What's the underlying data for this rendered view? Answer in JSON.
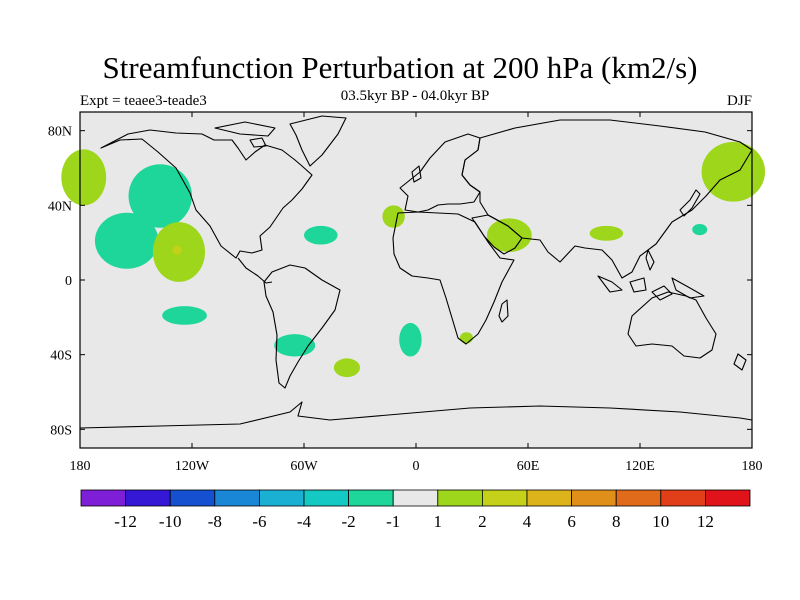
{
  "title": "Streamfunction Perturbation at 200 hPa (km2/s)",
  "experiment_label": "Expt = teaee3-teade3",
  "period_label": "03.5kyr BP - 04.0kyr BP",
  "season_label": "DJF",
  "chart_data": {
    "type": "heatmap",
    "projection": "cylindrical-equidistant",
    "lon_range": [
      -180,
      180
    ],
    "lat_range": [
      -90,
      90
    ],
    "x_ticks": [
      {
        "value": -180,
        "label": "180"
      },
      {
        "value": -120,
        "label": "120W"
      },
      {
        "value": -60,
        "label": "60W"
      },
      {
        "value": 0,
        "label": "0"
      },
      {
        "value": 60,
        "label": "60E"
      },
      {
        "value": 120,
        "label": "120E"
      },
      {
        "value": 180,
        "label": "180"
      }
    ],
    "y_ticks": [
      {
        "value": 80,
        "label": "80N"
      },
      {
        "value": 40,
        "label": "40N"
      },
      {
        "value": 0,
        "label": "0"
      },
      {
        "value": -40,
        "label": "40S"
      },
      {
        "value": -80,
        "label": "80S"
      }
    ],
    "background_color": "#e8e8e8",
    "colorbar": {
      "colors": [
        "#7e1ed6",
        "#3518d6",
        "#1550d1",
        "#1a86d6",
        "#1ab0d4",
        "#14c9c4",
        "#1ed69a",
        "#e8e8e8",
        "#9dd61a",
        "#c4d01a",
        "#dcb31a",
        "#e0901a",
        "#e06b1a",
        "#e03f1a",
        "#e0121a"
      ],
      "labels": [
        "-12",
        "-10",
        "-8",
        "-6",
        "-4",
        "-2",
        "-1",
        "1",
        "2",
        "4",
        "6",
        "8",
        "10",
        "12"
      ]
    },
    "regions": [
      {
        "name": "arctic-pacific-positive",
        "sign": "positive",
        "color": "#9dd61a",
        "lon_center": -178,
        "lat_center": 55,
        "lon_radius": 12,
        "lat_radius": 15
      },
      {
        "name": "north-pacific-negative",
        "sign": "negative",
        "color": "#1ed69a",
        "lon_center": -137,
        "lat_center": 45,
        "lon_radius": 17,
        "lat_radius": 17
      },
      {
        "name": "subtropical-pacific-negative",
        "sign": "negative",
        "color": "#1ed69a",
        "lon_center": -155,
        "lat_center": 21,
        "lon_radius": 17,
        "lat_radius": 15
      },
      {
        "name": "east-pacific-positive",
        "sign": "positive",
        "color": "#9dd61a",
        "lon_center": -127,
        "lat_center": 15,
        "lon_radius": 14,
        "lat_radius": 16
      },
      {
        "name": "east-pacific-core-positive",
        "sign": "positive",
        "color": "#c4d01a",
        "lon_center": -128,
        "lat_center": 16,
        "lon_radius": 2.5,
        "lat_radius": 2.5
      },
      {
        "name": "south-pacific-negative",
        "sign": "negative",
        "color": "#1ed69a",
        "lon_center": -124,
        "lat_center": -19,
        "lon_radius": 12,
        "lat_radius": 5
      },
      {
        "name": "caribbean-negative",
        "sign": "negative",
        "color": "#1ed69a",
        "lon_center": -51,
        "lat_center": 24,
        "lon_radius": 9,
        "lat_radius": 5
      },
      {
        "name": "south-america-negative",
        "sign": "negative",
        "color": "#1ed69a",
        "lon_center": -65,
        "lat_center": -35,
        "lon_radius": 11,
        "lat_radius": 6
      },
      {
        "name": "south-atlantic-positive",
        "sign": "positive",
        "color": "#9dd61a",
        "lon_center": -37,
        "lat_center": -47,
        "lon_radius": 7,
        "lat_radius": 5
      },
      {
        "name": "central-atlantic-negative",
        "sign": "negative",
        "color": "#1ed69a",
        "lon_center": -3,
        "lat_center": -32,
        "lon_radius": 6,
        "lat_radius": 9
      },
      {
        "name": "mediterranean-positive",
        "sign": "positive",
        "color": "#9dd61a",
        "lon_center": -12,
        "lat_center": 34,
        "lon_radius": 6,
        "lat_radius": 6
      },
      {
        "name": "middle-east-positive",
        "sign": "positive",
        "color": "#9dd61a",
        "lon_center": 50,
        "lat_center": 24,
        "lon_radius": 12,
        "lat_radius": 9
      },
      {
        "name": "south-africa-positive",
        "sign": "positive",
        "color": "#9dd61a",
        "lon_center": 27,
        "lat_center": -31,
        "lon_radius": 3.5,
        "lat_radius": 3
      },
      {
        "name": "south-asia-positive",
        "sign": "positive",
        "color": "#9dd61a",
        "lon_center": 102,
        "lat_center": 25,
        "lon_radius": 9,
        "lat_radius": 4
      },
      {
        "name": "north-pacific-west-negative",
        "sign": "negative",
        "color": "#1ed69a",
        "lon_center": 152,
        "lat_center": 27,
        "lon_radius": 4,
        "lat_radius": 3
      },
      {
        "name": "east-siberia-positive",
        "sign": "positive",
        "color": "#9dd61a",
        "lon_center": 170,
        "lat_center": 58,
        "lon_radius": 17,
        "lat_radius": 16
      }
    ]
  }
}
